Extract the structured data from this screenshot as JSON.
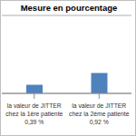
{
  "chart_data": {
    "type": "bar",
    "title": "Mesure en pourcentage",
    "categories": [
      "la valeur de JITTER chez la 1ère patiente 0,39 %",
      "la valeur de JITTER chez la 2ème patiente 0,92 %"
    ],
    "values": [
      0.39,
      0.92
    ],
    "color": "#4f81bd",
    "ylim": [
      0,
      3.5
    ],
    "yticks": [
      0,
      0.7,
      1.4,
      2.1,
      2.8,
      3.5
    ],
    "grid": true,
    "tick_labels": "x"
  }
}
